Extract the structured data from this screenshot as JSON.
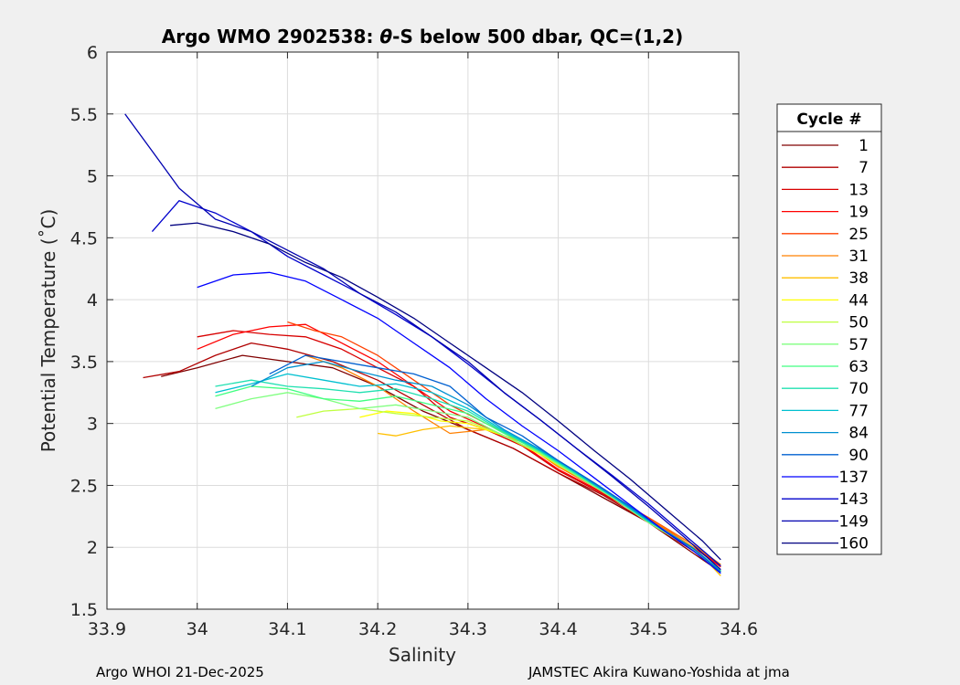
{
  "chart_data": {
    "type": "line",
    "title_prefix": "Argo WMO 2902538: ",
    "title_theta": "θ",
    "title_suffix": "-S below 500 dbar,  QC=(1,2)",
    "xlabel": "Salinity",
    "ylabel": "Potential Temperature (˚C)",
    "xlim": [
      33.9,
      34.6
    ],
    "ylim": [
      1.5,
      6
    ],
    "xticks": [
      33.9,
      34.0,
      34.1,
      34.2,
      34.3,
      34.4,
      34.5,
      34.6
    ],
    "xtick_labels": [
      "33.9",
      "34",
      "34.1",
      "34.2",
      "34.3",
      "34.4",
      "34.5",
      "34.6"
    ],
    "yticks": [
      1.5,
      2,
      2.5,
      3,
      3.5,
      4,
      4.5,
      5,
      5.5,
      6
    ],
    "ytick_labels": [
      "1.5",
      "2",
      "2.5",
      "3",
      "3.5",
      "4",
      "4.5",
      "5",
      "5.5",
      "6"
    ],
    "grid": true,
    "legend_title": "Cycle #",
    "legend_position": "outside-right",
    "series": [
      {
        "name": "1",
        "color": "#800000",
        "x": [
          33.96,
          34.0,
          34.05,
          34.1,
          34.15,
          34.2,
          34.25,
          34.3,
          34.35,
          34.4,
          34.45,
          34.5,
          34.55,
          34.58
        ],
        "y": [
          3.38,
          3.45,
          3.55,
          3.5,
          3.45,
          3.3,
          3.1,
          2.95,
          2.8,
          2.6,
          2.4,
          2.2,
          1.95,
          1.8
        ]
      },
      {
        "name": "7",
        "color": "#b00000",
        "x": [
          33.94,
          33.98,
          34.02,
          34.06,
          34.1,
          34.15,
          34.2,
          34.25,
          34.3,
          34.35,
          34.4,
          34.45,
          34.5,
          34.55,
          34.58
        ],
        "y": [
          3.37,
          3.42,
          3.55,
          3.65,
          3.6,
          3.5,
          3.35,
          3.15,
          2.95,
          2.8,
          2.6,
          2.42,
          2.2,
          1.97,
          1.82
        ]
      },
      {
        "name": "13",
        "color": "#d80000",
        "x": [
          34.0,
          34.04,
          34.08,
          34.12,
          34.16,
          34.2,
          34.24,
          34.28,
          34.32,
          34.36,
          34.4,
          34.45,
          34.5,
          34.55,
          34.58
        ],
        "y": [
          3.7,
          3.75,
          3.72,
          3.7,
          3.6,
          3.45,
          3.3,
          3.05,
          2.95,
          2.82,
          2.62,
          2.43,
          2.22,
          2.0,
          1.85
        ]
      },
      {
        "name": "19",
        "color": "#ff0000",
        "x": [
          34.0,
          34.04,
          34.08,
          34.12,
          34.16,
          34.2,
          34.24,
          34.28,
          34.32,
          34.36,
          34.4,
          34.45,
          34.5,
          34.55,
          34.58
        ],
        "y": [
          3.6,
          3.72,
          3.78,
          3.8,
          3.65,
          3.5,
          3.3,
          3.1,
          2.97,
          2.83,
          2.63,
          2.44,
          2.23,
          2.0,
          1.84
        ]
      },
      {
        "name": "25",
        "color": "#ff4000",
        "x": [
          34.1,
          34.13,
          34.16,
          34.2,
          34.24,
          34.28,
          34.32,
          34.36,
          34.4,
          34.45,
          34.5,
          34.55,
          34.58
        ],
        "y": [
          3.82,
          3.75,
          3.7,
          3.55,
          3.35,
          3.15,
          3.0,
          2.85,
          2.65,
          2.45,
          2.24,
          2.02,
          1.85
        ]
      },
      {
        "name": "31",
        "color": "#ff8000",
        "x": [
          34.12,
          34.16,
          34.2,
          34.24,
          34.28,
          34.32,
          34.36,
          34.4,
          34.45,
          34.5,
          34.55,
          34.58
        ],
        "y": [
          3.55,
          3.45,
          3.3,
          3.1,
          2.92,
          2.95,
          2.85,
          2.65,
          2.45,
          2.23,
          2.02,
          1.86
        ]
      },
      {
        "name": "38",
        "color": "#ffbf00",
        "x": [
          34.2,
          34.22,
          34.25,
          34.28,
          34.32,
          34.36,
          34.4,
          34.45,
          34.5,
          34.55,
          34.58
        ],
        "y": [
          2.92,
          2.9,
          2.95,
          2.98,
          2.95,
          2.85,
          2.66,
          2.46,
          2.22,
          2.0,
          1.77
        ]
      },
      {
        "name": "44",
        "color": "#ffff00",
        "x": [
          34.18,
          34.21,
          34.24,
          34.27,
          34.3,
          34.34,
          34.38,
          34.42,
          34.46,
          34.5,
          34.55,
          34.58
        ],
        "y": [
          3.05,
          3.1,
          3.08,
          3.02,
          3.0,
          2.9,
          2.75,
          2.58,
          2.4,
          2.2,
          1.98,
          1.8
        ]
      },
      {
        "name": "50",
        "color": "#bfff40",
        "x": [
          34.11,
          34.14,
          34.18,
          34.22,
          34.26,
          34.3,
          34.34,
          34.38,
          34.42,
          34.46,
          34.5,
          34.55,
          34.58
        ],
        "y": [
          3.05,
          3.1,
          3.12,
          3.08,
          3.05,
          3.02,
          2.9,
          2.76,
          2.58,
          2.4,
          2.2,
          1.98,
          1.8
        ]
      },
      {
        "name": "57",
        "color": "#80ff80",
        "x": [
          34.02,
          34.06,
          34.1,
          34.14,
          34.18,
          34.22,
          34.26,
          34.3,
          34.34,
          34.38,
          34.42,
          34.46,
          34.5,
          34.55,
          34.58
        ],
        "y": [
          3.12,
          3.2,
          3.25,
          3.2,
          3.12,
          3.15,
          3.1,
          3.05,
          2.9,
          2.76,
          2.58,
          2.4,
          2.2,
          1.98,
          1.8
        ]
      },
      {
        "name": "63",
        "color": "#40ff80",
        "x": [
          34.02,
          34.06,
          34.1,
          34.14,
          34.18,
          34.22,
          34.26,
          34.3,
          34.34,
          34.38,
          34.42,
          34.46,
          34.5,
          34.55,
          34.58
        ],
        "y": [
          3.22,
          3.3,
          3.28,
          3.2,
          3.18,
          3.22,
          3.15,
          3.08,
          2.92,
          2.77,
          2.59,
          2.41,
          2.21,
          1.99,
          1.81
        ]
      },
      {
        "name": "70",
        "color": "#20e0b0",
        "x": [
          34.02,
          34.06,
          34.1,
          34.14,
          34.18,
          34.22,
          34.26,
          34.3,
          34.34,
          34.38,
          34.42,
          34.46,
          34.5,
          34.55,
          34.58
        ],
        "y": [
          3.3,
          3.35,
          3.3,
          3.28,
          3.25,
          3.28,
          3.2,
          3.1,
          2.93,
          2.78,
          2.6,
          2.41,
          2.21,
          1.99,
          1.81
        ]
      },
      {
        "name": "77",
        "color": "#00c0d0",
        "x": [
          34.02,
          34.06,
          34.1,
          34.14,
          34.18,
          34.22,
          34.26,
          34.3,
          34.34,
          34.38,
          34.42,
          34.46,
          34.5,
          34.55,
          34.58
        ],
        "y": [
          3.25,
          3.32,
          3.4,
          3.35,
          3.3,
          3.32,
          3.25,
          3.12,
          2.94,
          2.78,
          2.6,
          2.41,
          2.21,
          1.99,
          1.8
        ]
      },
      {
        "name": "84",
        "color": "#0090d0",
        "x": [
          34.06,
          34.1,
          34.14,
          34.18,
          34.22,
          34.26,
          34.3,
          34.34,
          34.38,
          34.42,
          34.46,
          34.5,
          34.55,
          34.58
        ],
        "y": [
          3.3,
          3.45,
          3.5,
          3.42,
          3.35,
          3.3,
          3.15,
          2.95,
          2.79,
          2.61,
          2.42,
          2.22,
          1.99,
          1.8
        ]
      },
      {
        "name": "90",
        "color": "#0060d0",
        "x": [
          34.08,
          34.12,
          34.16,
          34.2,
          34.24,
          34.28,
          34.32,
          34.36,
          34.4,
          34.44,
          34.48,
          34.52,
          34.55,
          34.58
        ],
        "y": [
          3.4,
          3.55,
          3.5,
          3.45,
          3.4,
          3.3,
          3.05,
          2.9,
          2.7,
          2.52,
          2.33,
          2.12,
          1.99,
          1.8
        ]
      },
      {
        "name": "137",
        "color": "#0000ff",
        "x": [
          34.0,
          34.04,
          34.08,
          34.12,
          34.16,
          34.2,
          34.24,
          34.28,
          34.32,
          34.36,
          34.4,
          34.44,
          34.48,
          34.52,
          34.55,
          34.58
        ],
        "y": [
          4.1,
          4.2,
          4.22,
          4.15,
          4.0,
          3.85,
          3.65,
          3.45,
          3.2,
          2.98,
          2.78,
          2.56,
          2.34,
          2.12,
          1.97,
          1.79
        ]
      },
      {
        "name": "143",
        "color": "#0000cc",
        "x": [
          33.95,
          33.98,
          34.02,
          34.06,
          34.1,
          34.14,
          34.18,
          34.22,
          34.26,
          34.3,
          34.34,
          34.38,
          34.42,
          34.46,
          34.5,
          34.54,
          34.58
        ],
        "y": [
          4.55,
          4.8,
          4.7,
          4.55,
          4.35,
          4.2,
          4.05,
          3.88,
          3.7,
          3.48,
          3.25,
          3.03,
          2.8,
          2.58,
          2.35,
          2.1,
          1.85
        ]
      },
      {
        "name": "149",
        "color": "#0000b0",
        "x": [
          33.92,
          33.95,
          33.98,
          34.02,
          34.06,
          34.1,
          34.14,
          34.18,
          34.22,
          34.26,
          34.3,
          34.34,
          34.38,
          34.42,
          34.46,
          34.5,
          34.54,
          34.58
        ],
        "y": [
          5.5,
          5.2,
          4.9,
          4.65,
          4.55,
          4.4,
          4.25,
          4.05,
          3.9,
          3.7,
          3.5,
          3.25,
          3.03,
          2.8,
          2.57,
          2.33,
          2.08,
          1.82
        ]
      },
      {
        "name": "160",
        "color": "#000080",
        "x": [
          33.97,
          34.0,
          34.04,
          34.08,
          34.12,
          34.16,
          34.2,
          34.24,
          34.28,
          34.32,
          34.36,
          34.4,
          34.44,
          34.48,
          34.52,
          34.56,
          34.58
        ],
        "y": [
          4.6,
          4.62,
          4.55,
          4.45,
          4.3,
          4.18,
          4.02,
          3.85,
          3.65,
          3.45,
          3.25,
          3.02,
          2.78,
          2.55,
          2.3,
          2.05,
          1.9
        ]
      }
    ]
  },
  "footer": {
    "left": "Argo WHOI 21-Dec-2025",
    "right": "JAMSTEC Akira Kuwano-Yoshida at jma"
  }
}
